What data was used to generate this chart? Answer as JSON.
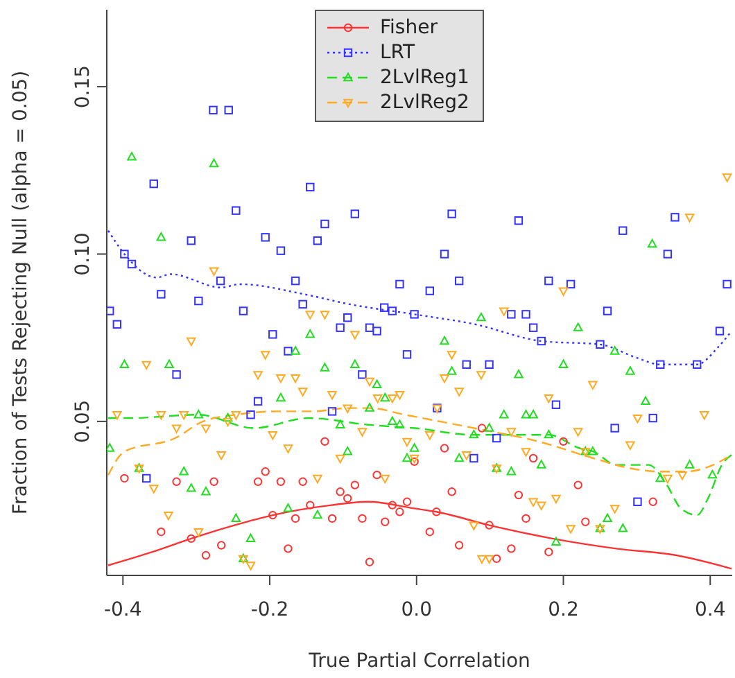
{
  "chart_data": {
    "type": "scatter",
    "xlabel": "True Partial Correlation",
    "ylabel": "Fraction of Tests Rejecting Null (alpha = 0.05)",
    "xlim": [
      -0.422,
      0.43
    ],
    "ylim": [
      0.004,
      0.173
    ],
    "xticks": [
      -0.4,
      -0.2,
      {
        "value": 0,
        "label": "0.0"
      },
      0.2,
      0.4
    ],
    "yticks": [
      0.05,
      {
        "value": 0.1,
        "label": "0.10"
      },
      0.15
    ],
    "legend": "top",
    "series": [
      {
        "name": "Fisher",
        "marker": "circle",
        "color": "#ff3333",
        "x": [
          -0.398,
          -0.327,
          -0.276,
          -0.206,
          -0.216,
          -0.185,
          -0.155,
          -0.125,
          -0.104,
          -0.084,
          -0.094,
          -0.054,
          -0.145,
          -0.165,
          -0.196,
          -0.115,
          -0.074,
          -0.043,
          -0.033,
          -0.023,
          -0.013,
          -0.003,
          -0.348,
          -0.307,
          -0.266,
          -0.287,
          -0.175,
          -0.064,
          0.089,
          0.2,
          0.038,
          0.159,
          0.048,
          0.027,
          0.099,
          0.139,
          0.22,
          0.149,
          0.23,
          0.322,
          0.018,
          0.058,
          0.129,
          0.18,
          0.109
        ],
        "values": [
          0.033,
          0.032,
          0.032,
          0.035,
          0.032,
          0.032,
          0.032,
          0.044,
          0.029,
          0.031,
          0.027,
          0.034,
          0.025,
          0.021,
          0.022,
          0.021,
          0.021,
          0.02,
          0.025,
          0.023,
          0.026,
          0.038,
          0.017,
          0.015,
          0.013,
          0.01,
          0.012,
          0.008,
          0.048,
          0.044,
          0.042,
          0.039,
          0.029,
          0.023,
          0.019,
          0.028,
          0.031,
          0.021,
          0.02,
          0.026,
          0.017,
          0.013,
          0.012,
          0.011,
          0.009
        ]
      },
      {
        "name": "LRT",
        "marker": "square",
        "color": "#3333ff",
        "x": [
          -0.277,
          -0.256,
          -0.358,
          -0.145,
          -0.246,
          -0.084,
          -0.125,
          -0.307,
          -0.206,
          -0.135,
          -0.185,
          -0.398,
          -0.388,
          -0.267,
          -0.165,
          -0.023,
          -0.348,
          -0.297,
          -0.155,
          0.048,
          0.139,
          0.281,
          0.352,
          0.342,
          0.038,
          0.018,
          0.058,
          0.18,
          0.21,
          0.423,
          -0.418,
          -0.408,
          -0.236,
          -0.196,
          -0.104,
          -0.094,
          -0.064,
          -0.054,
          -0.044,
          -0.033,
          -0.175,
          -0.013,
          -0.074,
          -0.216,
          -0.226,
          -0.115,
          -0.368,
          -0.327,
          -0.003,
          0.129,
          0.149,
          0.159,
          0.17,
          0.26,
          0.25,
          0.332,
          0.382,
          0.413,
          0.068,
          0.099,
          0.19,
          0.322,
          0.27,
          0.109,
          0.078,
          0.028,
          0.301
        ],
        "values": [
          0.143,
          0.143,
          0.121,
          0.12,
          0.113,
          0.112,
          0.109,
          0.104,
          0.105,
          0.104,
          0.101,
          0.1,
          0.097,
          0.092,
          0.092,
          0.091,
          0.088,
          0.086,
          0.085,
          0.112,
          0.11,
          0.107,
          0.111,
          0.1,
          0.1,
          0.089,
          0.092,
          0.092,
          0.091,
          0.091,
          0.083,
          0.079,
          0.083,
          0.076,
          0.078,
          0.081,
          0.078,
          0.077,
          0.084,
          0.083,
          0.071,
          0.07,
          0.064,
          0.056,
          0.052,
          0.053,
          0.033,
          0.064,
          0.082,
          0.082,
          0.082,
          0.078,
          0.074,
          0.083,
          0.073,
          0.067,
          0.067,
          0.077,
          0.067,
          0.067,
          0.055,
          0.051,
          0.048,
          0.045,
          0.039,
          0.054,
          0.026
        ]
      },
      {
        "name": "2LvlReg1",
        "marker": "triangle",
        "color": "#22dd22",
        "x": [
          -0.388,
          -0.276,
          -0.348,
          0.321,
          -0.398,
          -0.337,
          -0.145,
          -0.165,
          -0.125,
          -0.084,
          -0.054,
          -0.043,
          -0.185,
          -0.297,
          -0.257,
          -0.104,
          -0.064,
          -0.033,
          -0.023,
          -0.418,
          -0.094,
          -0.013,
          -0.317,
          -0.307,
          -0.287,
          -0.175,
          -0.135,
          -0.246,
          -0.226,
          -0.236,
          -0.378,
          0.088,
          0.038,
          0.22,
          0.27,
          0.2,
          0.048,
          0.291,
          0.139,
          0.119,
          0.149,
          0.159,
          0.099,
          0.078,
          0.18,
          0.312,
          -0.003,
          0.058,
          0.23,
          0.24,
          0.17,
          0.129,
          0.109,
          0.332,
          0.372,
          0.403,
          0.26,
          0.281,
          0.25,
          0.19
        ],
        "values": [
          0.129,
          0.127,
          0.105,
          0.103,
          0.067,
          0.067,
          0.076,
          0.071,
          0.066,
          0.067,
          0.061,
          0.057,
          0.057,
          0.052,
          0.051,
          0.049,
          0.054,
          0.05,
          0.049,
          0.042,
          0.041,
          0.039,
          0.035,
          0.03,
          0.029,
          0.024,
          0.022,
          0.021,
          0.015,
          0.009,
          0.036,
          0.081,
          0.074,
          0.078,
          0.071,
          0.067,
          0.065,
          0.065,
          0.064,
          0.052,
          0.052,
          0.052,
          0.048,
          0.046,
          0.046,
          0.056,
          0.042,
          0.039,
          0.041,
          0.041,
          0.037,
          0.035,
          0.036,
          0.033,
          0.037,
          0.034,
          0.021,
          0.018,
          0.018,
          0.014
        ]
      },
      {
        "name": "2LvlReg2",
        "marker": "triangle-down",
        "color": "#ffaa22",
        "x": [
          -0.276,
          0.372,
          0.2,
          0.423,
          -0.145,
          -0.125,
          -0.307,
          -0.084,
          -0.206,
          -0.368,
          -0.216,
          -0.185,
          -0.165,
          -0.155,
          -0.115,
          -0.064,
          -0.053,
          -0.033,
          -0.023,
          -0.094,
          -0.408,
          -0.348,
          -0.317,
          -0.246,
          -0.257,
          -0.327,
          -0.287,
          -0.196,
          -0.074,
          -0.013,
          -0.175,
          -0.266,
          -0.104,
          -0.378,
          -0.135,
          -0.043,
          -0.358,
          -0.338,
          -0.297,
          -0.236,
          -0.226,
          -0.003,
          0.119,
          0.048,
          0.038,
          0.088,
          0.058,
          0.24,
          0.18,
          0.028,
          0.301,
          0.392,
          0.129,
          0.22,
          0.291,
          0.018,
          0.149,
          0.068,
          0.23,
          0.109,
          0.342,
          0.362,
          0.19,
          0.159,
          0.17,
          0.27,
          0.078,
          0.25,
          0.21,
          0.099,
          0.089
        ],
        "values": [
          0.095,
          0.111,
          0.089,
          0.123,
          0.082,
          0.082,
          0.074,
          0.076,
          0.07,
          0.067,
          0.064,
          0.063,
          0.063,
          0.059,
          0.058,
          0.062,
          0.057,
          0.057,
          0.058,
          0.054,
          0.052,
          0.052,
          0.052,
          0.052,
          0.05,
          0.048,
          0.048,
          0.046,
          0.047,
          0.044,
          0.042,
          0.04,
          0.039,
          0.036,
          0.033,
          0.033,
          0.03,
          0.022,
          0.017,
          0.009,
          0.007,
          0.039,
          0.083,
          0.07,
          0.063,
          0.064,
          0.059,
          0.061,
          0.057,
          0.054,
          0.051,
          0.052,
          0.047,
          0.047,
          0.043,
          0.046,
          0.041,
          0.04,
          0.041,
          0.036,
          0.033,
          0.034,
          0.027,
          0.026,
          0.025,
          0.024,
          0.019,
          0.018,
          0.018,
          0.009,
          0.009
        ]
      },
      {
        "type": "line",
        "line_style": "solid",
        "color": "#ff3333",
        "x": [
          -0.42,
          -0.36,
          -0.307,
          -0.248,
          -0.196,
          -0.116,
          -0.066,
          -0.003,
          0.027,
          0.099,
          0.185,
          0.272,
          0.354,
          0.429
        ],
        "values": [
          0.007,
          0.011,
          0.015,
          0.019,
          0.022,
          0.025,
          0.026,
          0.024,
          0.023,
          0.019,
          0.015,
          0.012,
          0.01,
          0.006
        ]
      },
      {
        "type": "line",
        "line_style": "dotted",
        "color": "#3333ff",
        "x": [
          -0.42,
          -0.398,
          -0.354,
          -0.335,
          -0.266,
          -0.241,
          -0.153,
          -0.091,
          -0.003,
          0.08,
          0.17,
          0.25,
          0.3,
          0.332,
          0.382,
          0.41,
          0.429
        ],
        "values": [
          0.107,
          0.1,
          0.093,
          0.094,
          0.09,
          0.091,
          0.088,
          0.085,
          0.082,
          0.079,
          0.074,
          0.073,
          0.069,
          0.067,
          0.067,
          0.072,
          0.077
        ]
      },
      {
        "type": "line",
        "line_style": "dashed",
        "color": "#22dd22",
        "x": [
          -0.42,
          -0.391,
          -0.297,
          -0.222,
          -0.147,
          -0.066,
          -0.003,
          0.078,
          0.18,
          0.222,
          0.241,
          0.272,
          0.316,
          0.341,
          0.36,
          0.382,
          0.397,
          0.416,
          0.429
        ],
        "values": [
          0.051,
          0.051,
          0.052,
          0.048,
          0.051,
          0.049,
          0.048,
          0.046,
          0.046,
          0.042,
          0.041,
          0.037,
          0.037,
          0.031,
          0.024,
          0.022,
          0.027,
          0.037,
          0.04
        ]
      },
      {
        "type": "line",
        "line_style": "dashed",
        "color": "#ffaa22",
        "x": [
          -0.42,
          -0.398,
          -0.329,
          -0.291,
          -0.246,
          -0.191,
          -0.141,
          -0.094,
          -0.064,
          -0.016,
          0.078,
          0.166,
          0.241,
          0.291,
          0.335,
          0.366,
          0.404,
          0.429
        ],
        "values": [
          0.034,
          0.041,
          0.045,
          0.05,
          0.052,
          0.053,
          0.053,
          0.054,
          0.054,
          0.052,
          0.048,
          0.044,
          0.039,
          0.036,
          0.035,
          0.035,
          0.037,
          0.04
        ]
      }
    ]
  }
}
